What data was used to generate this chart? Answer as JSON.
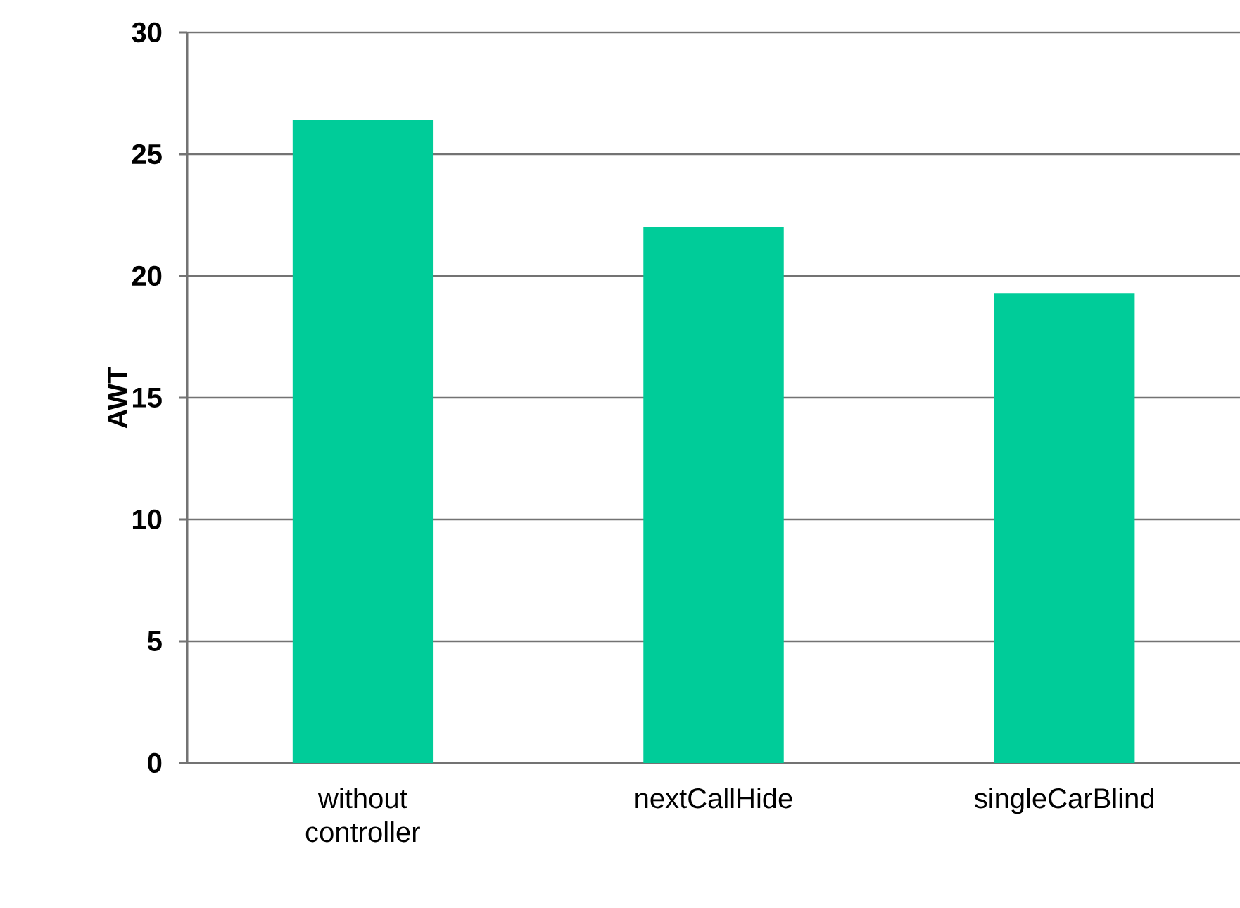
{
  "chart_data": {
    "type": "bar",
    "ylabel": "AWT",
    "categories": [
      "without\ncontroller",
      "nextCallHide",
      "singleCarBlind"
    ],
    "values": [
      26.4,
      22.0,
      19.3
    ],
    "color": "#00cc99",
    "ylim": [
      0,
      30
    ],
    "yticks": [
      0,
      5,
      10,
      15,
      20,
      25,
      30
    ],
    "grid": "y"
  }
}
